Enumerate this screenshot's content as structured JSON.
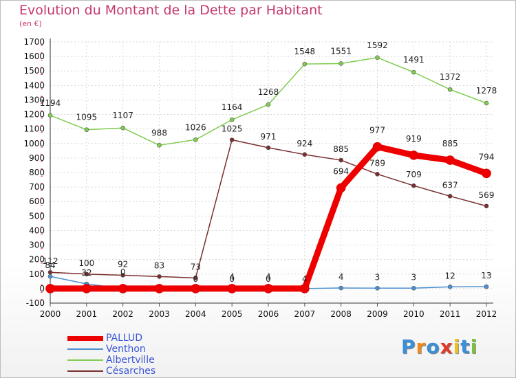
{
  "title": "Evolution du Montant de la Dette par Habitant",
  "unit_label": "(en €)",
  "logo": {
    "text": "Proxiti",
    "letters": [
      "P",
      "r",
      "o",
      "x",
      "i",
      "t",
      "i"
    ],
    "colors": [
      "#3a8fd6",
      "#f08a1c",
      "#3a8fd6",
      "#e23a2a",
      "#f0c020",
      "#3a8fd6",
      "#7ac23c"
    ]
  },
  "chart_data": {
    "type": "line",
    "title": "Evolution du Montant de la Dette par Habitant",
    "ylabel": "(en €)",
    "xlabel": "",
    "x": [
      "2000",
      "2001",
      "2002",
      "2003",
      "2004",
      "2005",
      "2006",
      "2007",
      "2008",
      "2009",
      "2010",
      "2011",
      "2012"
    ],
    "ylim": [
      -100,
      1700
    ],
    "yticks": [
      "-100",
      "0",
      "100",
      "200",
      "300",
      "400",
      "500",
      "600",
      "700",
      "800",
      "900",
      "1000",
      "1100",
      "1200",
      "1300",
      "1400",
      "1500",
      "1600",
      "1700"
    ],
    "grid": true,
    "legend_position": "bottom-left",
    "series": [
      {
        "name": "PALLUD",
        "color": "#ee0000",
        "values": [
          0,
          0,
          0,
          0,
          0,
          0,
          0,
          0,
          694,
          977,
          919,
          885,
          794
        ],
        "labels": [
          "",
          "",
          "0",
          "",
          "",
          "",
          "",
          "",
          "694",
          "977",
          "919",
          "885",
          "794"
        ]
      },
      {
        "name": "Venthon",
        "color": "#4a90d0",
        "values": [
          84,
          32,
          0,
          0,
          0,
          4,
          4,
          0,
          4,
          3,
          3,
          12,
          13
        ],
        "labels": [
          "84",
          "32",
          "",
          "",
          "",
          "4",
          "4",
          "",
          "4",
          "3",
          "3",
          "12",
          "13"
        ]
      },
      {
        "name": "Albertville",
        "color": "#80cc50",
        "values": [
          1194,
          1095,
          1107,
          988,
          1026,
          1164,
          1268,
          1548,
          1551,
          1592,
          1491,
          1372,
          1278
        ],
        "labels": [
          "1194",
          "1095",
          "1107",
          "988",
          "1026",
          "1164",
          "1268",
          "1548",
          "1551",
          "1592",
          "1491",
          "1372",
          "1278"
        ]
      },
      {
        "name": "Césarches",
        "color": "#7a2e2e",
        "values": [
          112,
          100,
          92,
          83,
          73,
          1025,
          971,
          924,
          885,
          789,
          709,
          637,
          569
        ],
        "labels": [
          "112",
          "100",
          "92",
          "83",
          "73",
          "1025",
          "971",
          "924",
          "885",
          "789",
          "709",
          "637",
          "569"
        ]
      }
    ],
    "extra_labels": [
      {
        "x": "2004",
        "text": "0"
      },
      {
        "x": "2005",
        "text": "0"
      },
      {
        "x": "2006",
        "text": "0"
      },
      {
        "x": "2007",
        "text": "4"
      }
    ]
  }
}
